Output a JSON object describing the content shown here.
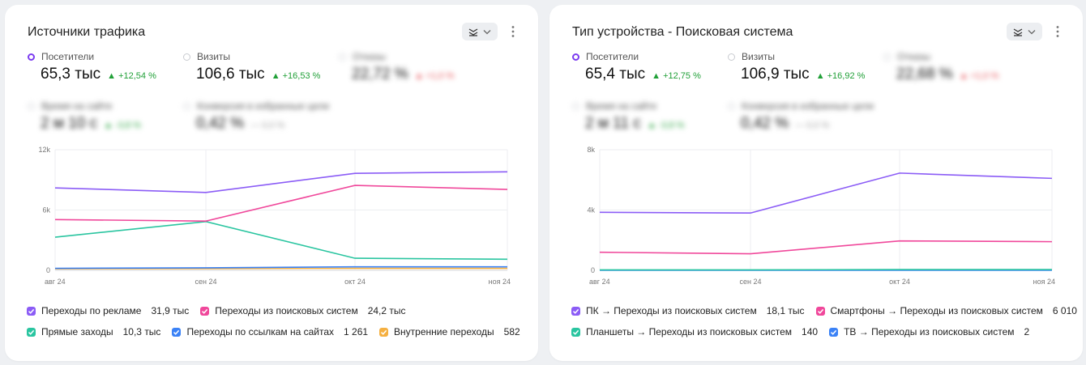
{
  "cards": [
    {
      "title": "Источники трафика",
      "metrics": [
        {
          "label": "Посетители",
          "value": "65,3 тыс",
          "delta": "▲ +12,54 %",
          "selected": true,
          "blurred": false,
          "tone": "pos"
        },
        {
          "label": "Визиты",
          "value": "106,6 тыс",
          "delta": "▲ +16,53 %",
          "selected": false,
          "blurred": false,
          "tone": "pos"
        },
        {
          "label": "Отказы",
          "value": "22,72 %",
          "delta": "▲ +1,0 %",
          "selected": false,
          "blurred": true,
          "tone": "neg"
        },
        {
          "label": "Время на сайте",
          "value": "2 м 10 с",
          "delta": "▲ -3,8 %",
          "selected": false,
          "blurred": true,
          "tone": "pos"
        },
        {
          "label": "Конверсия в избранные цели",
          "value": "0,42 %",
          "delta": "— 0,0 %",
          "selected": false,
          "blurred": true,
          "tone": "neu"
        }
      ],
      "chart_data": {
        "type": "line",
        "categories": [
          "авг 24",
          "сен 24",
          "окт 24",
          "ноя 24"
        ],
        "y_ticks": [
          "0",
          "6k",
          "12k"
        ],
        "ylim": [
          0,
          12000
        ],
        "grid": true,
        "series": [
          {
            "name": "Переходы по рекламе",
            "total": "31,9 тыс",
            "color": "#8b5cf6",
            "values": [
              8200,
              7750,
              9650,
              9800
            ]
          },
          {
            "name": "Переходы из поисковых систем",
            "total": "24,2 тыс",
            "color": "#f0489b",
            "values": [
              5050,
              4900,
              8450,
              8050
            ]
          },
          {
            "name": "Прямые заходы",
            "total": "10,3 тыс",
            "color": "#2ac5a0",
            "values": [
              3300,
              4850,
              1200,
              1100
            ]
          },
          {
            "name": "Переходы по ссылкам на сайтах",
            "total": "1 261",
            "color": "#3b82f6",
            "values": [
              200,
              250,
              350,
              350
            ]
          },
          {
            "name": "Внутренние переходы",
            "total": "582",
            "color": "#f5b041",
            "values": [
              150,
              170,
              200,
              200
            ]
          }
        ]
      }
    },
    {
      "title": "Тип устройства - Поисковая система",
      "metrics": [
        {
          "label": "Посетители",
          "value": "65,4 тыс",
          "delta": "▲ +12,75 %",
          "selected": true,
          "blurred": false,
          "tone": "pos"
        },
        {
          "label": "Визиты",
          "value": "106,9 тыс",
          "delta": "▲ +16,92 %",
          "selected": false,
          "blurred": false,
          "tone": "pos"
        },
        {
          "label": "Отказы",
          "value": "22,68 %",
          "delta": "▲ +1,0 %",
          "selected": false,
          "blurred": true,
          "tone": "neg"
        },
        {
          "label": "Время на сайте",
          "value": "2 м 11 с",
          "delta": "▲ -3,8 %",
          "selected": false,
          "blurred": true,
          "tone": "pos"
        },
        {
          "label": "Конверсия в избранные цели",
          "value": "0,42 %",
          "delta": "— 0,0 %",
          "selected": false,
          "blurred": true,
          "tone": "neu"
        }
      ],
      "chart_data": {
        "type": "line",
        "categories": [
          "авг 24",
          "сен 24",
          "окт 24",
          "ноя 24"
        ],
        "y_ticks": [
          "0",
          "4k",
          "8k"
        ],
        "ylim": [
          0,
          8000
        ],
        "grid": true,
        "series": [
          {
            "name": "ПК → Переходы из поисковых систем",
            "total": "18,1 тыс",
            "color": "#8b5cf6",
            "values": [
              3850,
              3800,
              6450,
              6100
            ]
          },
          {
            "name": "Смартфоны → Переходы из поисковых систем",
            "total": "6 010",
            "color": "#f0489b",
            "values": [
              1200,
              1100,
              1950,
              1900
            ]
          },
          {
            "name": "Планшеты → Переходы из поисковых систем",
            "total": "140",
            "color": "#2ac5a0",
            "values": [
              30,
              30,
              50,
              50
            ]
          },
          {
            "name": "ТВ → Переходы из поисковых систем",
            "total": "2",
            "color": "#3b82f6",
            "values": [
              0,
              0,
              0,
              0
            ]
          }
        ]
      }
    }
  ]
}
